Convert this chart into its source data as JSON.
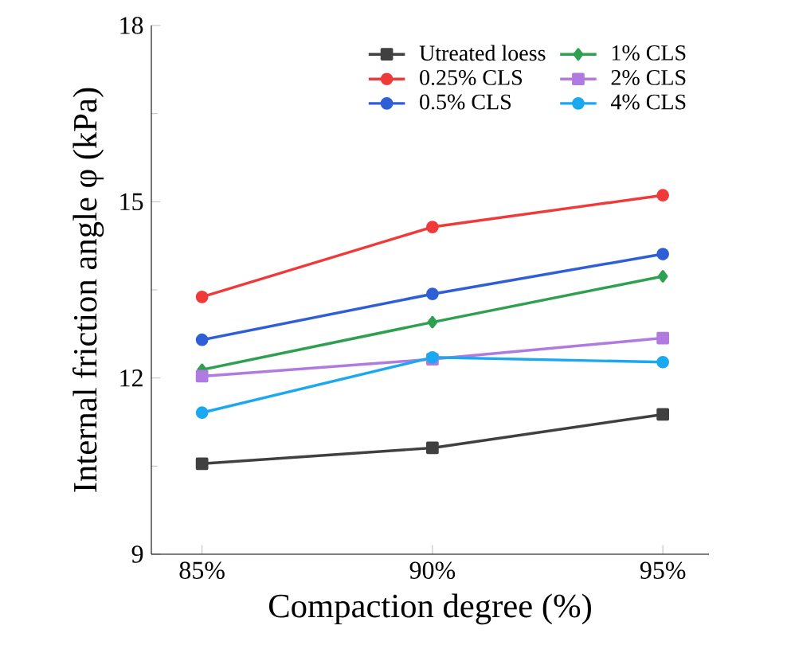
{
  "chart_data": {
    "type": "line",
    "xlabel": "Compaction degree (%)",
    "ylabel": "Internal friction angle φ (kPa)",
    "categories": [
      "85%",
      "90%",
      "95%"
    ],
    "ylim": [
      9,
      18
    ],
    "yticks": [
      9,
      12,
      15,
      18
    ],
    "legend": "top",
    "grid": false,
    "series": [
      {
        "name": "Utreated loess",
        "color": "#404040",
        "marker": "square",
        "values": [
          10.54,
          10.81,
          11.38
        ]
      },
      {
        "name": "0.25% CLS",
        "color": "#f03a3a",
        "marker": "circle",
        "values": [
          13.38,
          14.57,
          15.11
        ]
      },
      {
        "name": "0.5% CLS",
        "color": "#2e5fd6",
        "marker": "circle",
        "values": [
          12.65,
          13.43,
          14.11
        ]
      },
      {
        "name": "1% CLS",
        "color": "#2ea050",
        "marker": "diamond",
        "values": [
          12.14,
          12.95,
          13.73
        ]
      },
      {
        "name": "2% CLS",
        "color": "#b07ae0",
        "marker": "square",
        "values": [
          12.03,
          12.32,
          12.68
        ]
      },
      {
        "name": "4% CLS",
        "color": "#1aa8f0",
        "marker": "circle",
        "values": [
          11.41,
          12.35,
          12.27
        ]
      }
    ]
  }
}
